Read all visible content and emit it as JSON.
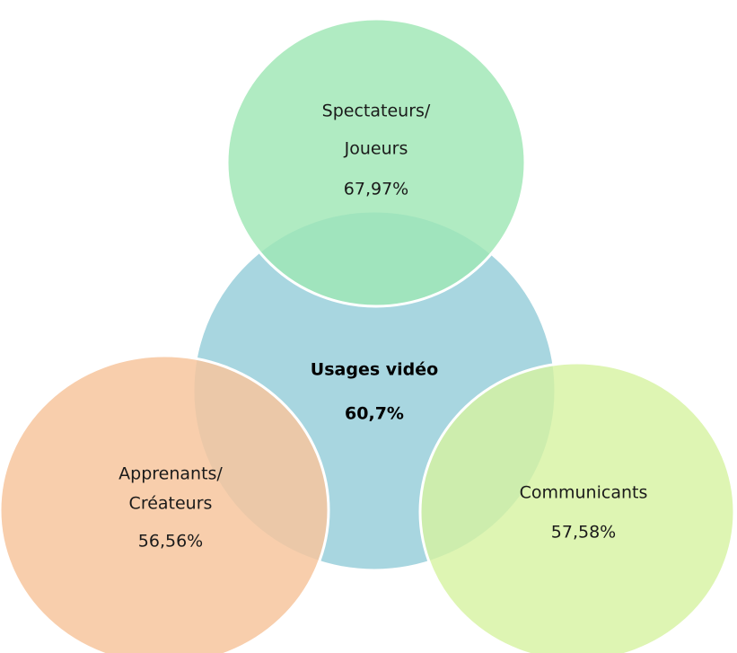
{
  "nodes": [
    {
      "lines": [
        "Spectateurs/",
        "Joueurs"
      ],
      "value": "67,97%"
    },
    {
      "lines": [
        "Usages vidéo"
      ],
      "value": "60,7%"
    },
    {
      "lines": [
        "Apprenants/",
        "Créateurs"
      ],
      "value": "56,56%"
    },
    {
      "lines": [
        "Communicants"
      ],
      "value": "57,58%"
    }
  ]
}
